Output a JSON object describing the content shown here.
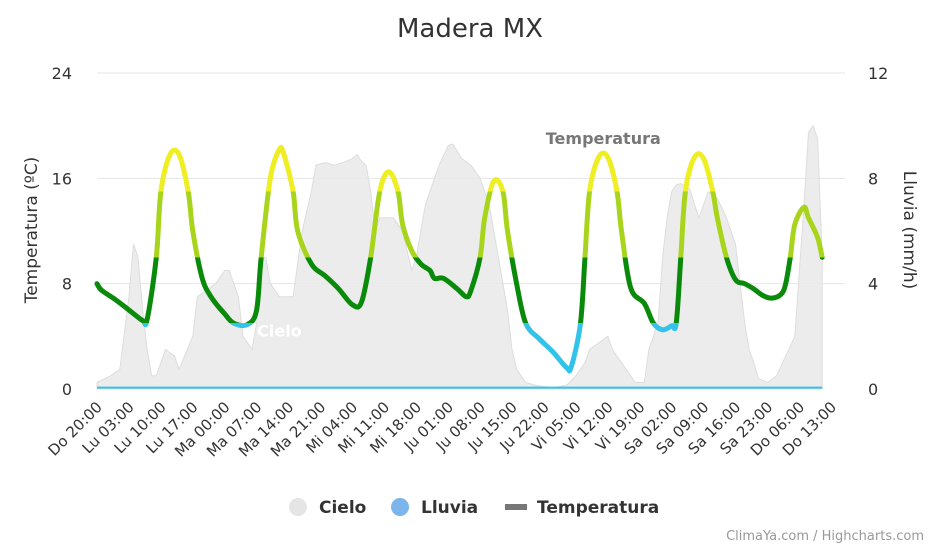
{
  "chart_data": {
    "type": "line",
    "title": "Madera MX",
    "y_left": {
      "label": "Temperatura (ºC)",
      "min": 0,
      "max": 24,
      "ticks": [
        0,
        8,
        16,
        24
      ]
    },
    "y_right": {
      "label": "Lluvia (mm/h)",
      "min": 0,
      "max": 12,
      "ticks": [
        0,
        4,
        8,
        12
      ]
    },
    "x_tick_labels": [
      "Do 20:00",
      "Lu 03:00",
      "Lu 10:00",
      "Lu 17:00",
      "Ma 00:00",
      "Ma 07:00",
      "Ma 14:00",
      "Ma 21:00",
      "Mi 04:00",
      "Mi 11:00",
      "Mi 18:00",
      "Ju 01:00",
      "Ju 08:00",
      "Ju 15:00",
      "Ju 22:00",
      "Vi 05:00",
      "Vi 12:00",
      "Vi 19:00",
      "Sa 02:00",
      "Sa 09:00",
      "Sa 16:00",
      "Sa 23:00",
      "Do 06:00",
      "Do 13:00"
    ],
    "x_hours": {
      "min": 0,
      "max": 164,
      "tick_step": 7
    },
    "series": [
      {
        "name": "Temperatura",
        "axis": "left",
        "color_bands": [
          {
            "max": 5,
            "color": "#33c3ea"
          },
          {
            "max": 10,
            "color": "#0a8a0a"
          },
          {
            "max": 15,
            "color": "#a9d41c"
          },
          {
            "max": 99,
            "color": "#eeee22"
          }
        ],
        "points": [
          [
            0,
            8.0
          ],
          [
            1,
            7.5
          ],
          [
            4,
            6.8
          ],
          [
            7,
            6.0
          ],
          [
            10,
            5.2
          ],
          [
            11,
            5.3
          ],
          [
            13,
            10.0
          ],
          [
            14,
            15.0
          ],
          [
            16,
            17.8
          ],
          [
            18,
            17.8
          ],
          [
            20,
            15.0
          ],
          [
            21,
            12.0
          ],
          [
            23,
            8.5
          ],
          [
            25,
            7.0
          ],
          [
            28,
            5.7
          ],
          [
            30,
            5.0
          ],
          [
            33,
            4.9
          ],
          [
            35,
            6.0
          ],
          [
            36,
            10.0
          ],
          [
            38,
            16.0
          ],
          [
            40,
            18.2
          ],
          [
            41,
            17.8
          ],
          [
            43,
            15.0
          ],
          [
            44,
            12.0
          ],
          [
            47,
            9.5
          ],
          [
            50,
            8.6
          ],
          [
            53,
            7.6
          ],
          [
            56,
            6.4
          ],
          [
            58,
            6.6
          ],
          [
            60,
            10.0
          ],
          [
            62,
            15.0
          ],
          [
            64,
            16.5
          ],
          [
            66,
            15.0
          ],
          [
            67,
            12.5
          ],
          [
            69,
            10.5
          ],
          [
            71,
            9.5
          ],
          [
            73,
            9.0
          ],
          [
            74,
            8.4
          ],
          [
            76,
            8.4
          ],
          [
            79,
            7.6
          ],
          [
            81,
            7.0
          ],
          [
            82,
            7.5
          ],
          [
            84,
            10.0
          ],
          [
            85,
            13.0
          ],
          [
            87,
            15.8
          ],
          [
            89,
            15.0
          ],
          [
            90,
            12.0
          ],
          [
            92,
            8.0
          ],
          [
            94,
            5.0
          ],
          [
            97,
            3.8
          ],
          [
            100,
            2.8
          ],
          [
            103,
            1.6
          ],
          [
            104,
            1.7
          ],
          [
            106,
            5.0
          ],
          [
            107,
            10.0
          ],
          [
            108,
            15.0
          ],
          [
            110,
            17.6
          ],
          [
            112,
            17.6
          ],
          [
            114,
            15.0
          ],
          [
            115,
            12.0
          ],
          [
            117,
            7.7
          ],
          [
            120,
            6.5
          ],
          [
            122,
            5.0
          ],
          [
            124,
            4.5
          ],
          [
            126,
            4.8
          ],
          [
            127,
            5.0
          ],
          [
            128,
            10.0
          ],
          [
            129,
            15.0
          ],
          [
            131,
            17.6
          ],
          [
            133,
            17.5
          ],
          [
            135,
            15.0
          ],
          [
            136,
            13.0
          ],
          [
            138,
            10.0
          ],
          [
            140,
            8.3
          ],
          [
            142,
            8.0
          ],
          [
            144,
            7.6
          ],
          [
            146,
            7.1
          ],
          [
            148,
            6.9
          ],
          [
            150,
            7.2
          ],
          [
            151,
            8.0
          ],
          [
            152,
            10.0
          ],
          [
            153,
            12.5
          ],
          [
            155,
            13.8
          ],
          [
            156,
            13.0
          ],
          [
            158,
            11.5
          ],
          [
            159,
            10.0
          ]
        ]
      },
      {
        "name": "Lluvia",
        "axis": "right",
        "color": "#33c3ea",
        "points": [
          [
            0,
            0.05
          ],
          [
            159,
            0.05
          ]
        ]
      },
      {
        "name": "Cielo",
        "axis": "left",
        "color": "#e9e9e9",
        "points": [
          [
            0,
            0.5
          ],
          [
            3,
            1.0
          ],
          [
            5,
            1.5
          ],
          [
            7,
            7.0
          ],
          [
            8,
            11.0
          ],
          [
            9,
            10.0
          ],
          [
            10,
            6.0
          ],
          [
            11,
            3.0
          ],
          [
            12,
            1.0
          ],
          [
            13,
            1.0
          ],
          [
            15,
            3.0
          ],
          [
            17,
            2.5
          ],
          [
            18,
            1.5
          ],
          [
            21,
            4.0
          ],
          [
            22,
            7.0
          ],
          [
            24,
            7.5
          ],
          [
            26,
            8.0
          ],
          [
            28,
            9.0
          ],
          [
            29,
            9.0
          ],
          [
            31,
            7.0
          ],
          [
            32,
            4.0
          ],
          [
            34,
            3.0
          ],
          [
            35,
            5.0
          ],
          [
            36,
            10.0
          ],
          [
            37,
            10.0
          ],
          [
            38,
            8.0
          ],
          [
            40,
            7.0
          ],
          [
            42,
            7.0
          ],
          [
            43,
            7.0
          ],
          [
            45,
            12.0
          ],
          [
            47,
            15.0
          ],
          [
            48,
            17.0
          ],
          [
            50,
            17.2
          ],
          [
            52,
            17.0
          ],
          [
            54,
            17.2
          ],
          [
            56,
            17.5
          ],
          [
            57,
            17.8
          ],
          [
            58,
            17.3
          ],
          [
            59,
            17.0
          ],
          [
            60,
            15.0
          ],
          [
            61,
            12.0
          ],
          [
            62,
            13.0
          ],
          [
            63,
            13.0
          ],
          [
            65,
            13.0
          ],
          [
            67,
            12.0
          ],
          [
            69,
            9.0
          ],
          [
            70,
            10.0
          ],
          [
            71,
            12.0
          ],
          [
            72,
            14.0
          ],
          [
            74,
            16.0
          ],
          [
            75,
            17.0
          ],
          [
            77,
            18.5
          ],
          [
            78,
            18.6
          ],
          [
            80,
            17.5
          ],
          [
            82,
            17.0
          ],
          [
            84,
            16.0
          ],
          [
            86,
            14.0
          ],
          [
            88,
            10.0
          ],
          [
            90,
            6.0
          ],
          [
            91,
            3.0
          ],
          [
            92,
            1.5
          ],
          [
            94,
            0.5
          ],
          [
            96,
            0.3
          ],
          [
            100,
            0.1
          ],
          [
            103,
            0.3
          ],
          [
            105,
            1.0
          ],
          [
            107,
            2.0
          ],
          [
            108,
            3.0
          ],
          [
            110,
            3.5
          ],
          [
            112,
            4.0
          ],
          [
            113,
            3.0
          ],
          [
            115,
            2.0
          ],
          [
            117,
            1.0
          ],
          [
            118,
            0.5
          ],
          [
            120,
            0.5
          ],
          [
            121,
            3.0
          ],
          [
            123,
            5.0
          ],
          [
            124,
            10.0
          ],
          [
            125,
            13.0
          ],
          [
            126,
            15.0
          ],
          [
            127,
            15.5
          ],
          [
            128,
            15.6
          ],
          [
            130,
            15.2
          ],
          [
            131,
            14.0
          ],
          [
            132,
            13.0
          ],
          [
            134,
            15.0
          ],
          [
            136,
            14.5
          ],
          [
            138,
            13.0
          ],
          [
            140,
            11.0
          ],
          [
            141,
            8.0
          ],
          [
            142,
            5.0
          ],
          [
            143,
            3.0
          ],
          [
            144,
            2.0
          ],
          [
            145,
            0.8
          ],
          [
            147,
            0.5
          ],
          [
            149,
            1.0
          ],
          [
            151,
            2.5
          ],
          [
            153,
            4.0
          ],
          [
            154,
            9.0
          ],
          [
            155,
            14.0
          ],
          [
            156,
            19.5
          ],
          [
            157,
            20.0
          ],
          [
            158,
            19.0
          ],
          [
            159,
            10.0
          ]
        ]
      }
    ],
    "series_labels": [
      {
        "text": "Temperatura",
        "at_hour": 111,
        "at_value": 18.6
      },
      {
        "text": "Cielo",
        "at_hour": 40,
        "at_value": 4.0
      }
    ],
    "legend": {
      "position": "bottom",
      "items": [
        {
          "label": "Cielo",
          "symbol": "circle",
          "color": "#e5e5e5"
        },
        {
          "label": "Lluvia",
          "symbol": "circle",
          "color": "#7cb5ec"
        },
        {
          "label": "Temperatura",
          "symbol": "line",
          "color": "#777777"
        }
      ]
    },
    "colors": {
      "grid": "#e6e6e6",
      "zero_line": "#33c3ea"
    },
    "grid": true
  },
  "credits": "ClimaYa.com / Highcharts.com"
}
